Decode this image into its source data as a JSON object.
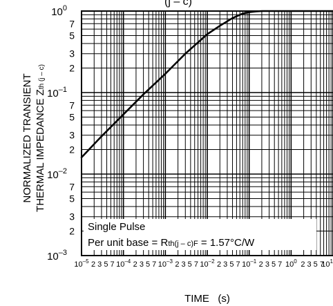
{
  "chart_data": {
    "type": "line",
    "title_fragment": "(j – c)",
    "xlabel": "TIME   (s)",
    "ylabel_line1": "NORMALIZED TRANSIENT",
    "ylabel_line2_main": "THERMAL IMPEDANCE  Z",
    "ylabel_line2_sub": "th (j – c)",
    "x_scale": "log",
    "y_scale": "log",
    "xlim": [
      1e-05,
      10
    ],
    "ylim": [
      0.001,
      1
    ],
    "grid": true,
    "x_tick_labels": [
      {
        "main": "10",
        "sup": "–5",
        "tail": "2 3  5 7"
      },
      {
        "main": "10",
        "sup": "–4",
        "tail": "2 3  5 7"
      },
      {
        "main": "10",
        "sup": "–3",
        "tail": "2 3  5 7"
      },
      {
        "main": "10",
        "sup": "–2",
        "tail": "2 3  5 7"
      },
      {
        "main": "10",
        "sup": "–1",
        "tail": "2 3  5 7"
      },
      {
        "main": "10",
        "sup": "0",
        "tail": "2 3  5 7"
      },
      {
        "main": "10",
        "sup": "1",
        "tail": ""
      }
    ],
    "y_decade_labels": [
      {
        "main": "10",
        "sup": "0"
      },
      {
        "main": "10",
        "sup": "–1"
      },
      {
        "main": "10",
        "sup": "–2"
      },
      {
        "main": "10",
        "sup": "–3"
      }
    ],
    "y_minor_labels": [
      "7",
      "5",
      "3",
      "2"
    ],
    "series": [
      {
        "x": [
          1e-05,
          3e-05,
          0.0001,
          0.0003,
          0.001,
          0.003,
          0.01,
          0.02,
          0.04,
          0.07,
          0.1,
          0.15,
          0.2,
          0.3,
          0.5,
          1,
          10
        ],
        "y": [
          0.016,
          0.029,
          0.054,
          0.095,
          0.17,
          0.3,
          0.52,
          0.66,
          0.82,
          0.93,
          0.97,
          0.99,
          1.0,
          1.0,
          1.0,
          1.0,
          1.0
        ]
      }
    ],
    "annotation": {
      "line1": "Single Pulse",
      "line2_pre": "Per unit base = R",
      "line2_sub": "th(j – c)F",
      "line2_post": " = 1.57°C/W"
    }
  }
}
